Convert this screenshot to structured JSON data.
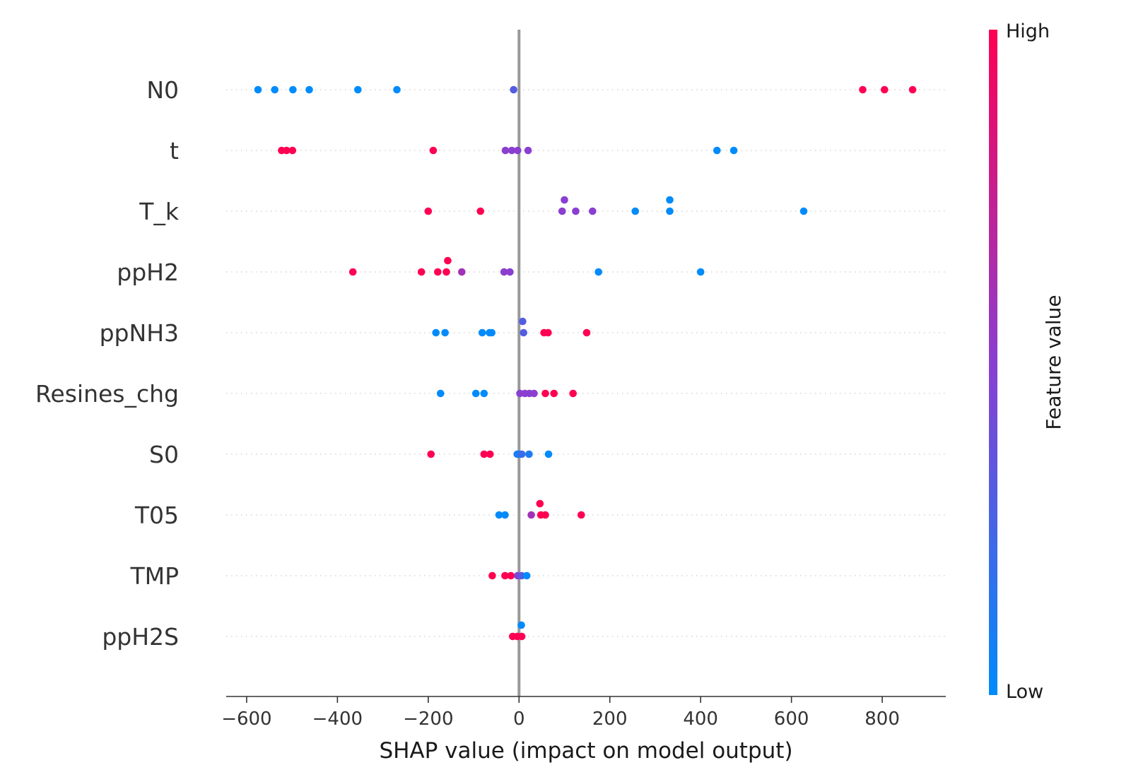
{
  "chart_data": {
    "type": "scatter",
    "subtype": "shap-beeswarm",
    "xlabel": "SHAP value (impact on model output)",
    "xlim": [
      -645,
      940
    ],
    "x_ticks": [
      -600,
      -400,
      -200,
      0,
      200,
      400,
      600,
      800
    ],
    "x_tick_labels": [
      "−600",
      "−400",
      "−200",
      "0",
      "200",
      "400",
      "600",
      "800"
    ],
    "grid": "dotted horizontal guide per feature row",
    "colorbar": {
      "title": "Feature value",
      "high_label": "High",
      "low_label": "Low",
      "colors": {
        "low": "#008bfb",
        "mid": "#8a3fd0",
        "high": "#ff0052"
      }
    },
    "features": [
      {
        "name": "N0",
        "points": [
          {
            "shap": -575,
            "value": 0.0,
            "lane": 0
          },
          {
            "shap": -538,
            "value": 0.0,
            "lane": 0
          },
          {
            "shap": -498,
            "value": 0.0,
            "lane": 0
          },
          {
            "shap": -462,
            "value": 0.0,
            "lane": 0
          },
          {
            "shap": -355,
            "value": 0.0,
            "lane": 0
          },
          {
            "shap": -269,
            "value": 0.0,
            "lane": 0
          },
          {
            "shap": -12,
            "value": 0.3,
            "lane": 0
          },
          {
            "shap": 757,
            "value": 1.0,
            "lane": 0
          },
          {
            "shap": 805,
            "value": 1.0,
            "lane": 0
          },
          {
            "shap": 867,
            "value": 1.0,
            "lane": 0
          }
        ]
      },
      {
        "name": "t",
        "points": [
          {
            "shap": -523,
            "value": 1.0,
            "lane": 0
          },
          {
            "shap": -512,
            "value": 1.0,
            "lane": 0
          },
          {
            "shap": -499,
            "value": 1.0,
            "lane": 0
          },
          {
            "shap": -189,
            "value": 1.0,
            "lane": 0
          },
          {
            "shap": -30,
            "value": 0.5,
            "lane": 0
          },
          {
            "shap": -16,
            "value": 0.5,
            "lane": 0
          },
          {
            "shap": -3,
            "value": 0.5,
            "lane": 0
          },
          {
            "shap": 20,
            "value": 0.5,
            "lane": 0
          },
          {
            "shap": 436,
            "value": 0.0,
            "lane": 0
          },
          {
            "shap": 473,
            "value": 0.0,
            "lane": 0
          }
        ]
      },
      {
        "name": "T_k",
        "points": [
          {
            "shap": -200,
            "value": 1.0,
            "lane": 0
          },
          {
            "shap": -85,
            "value": 1.0,
            "lane": 0
          },
          {
            "shap": 100,
            "value": 0.5,
            "lane": 1
          },
          {
            "shap": 95,
            "value": 0.5,
            "lane": 0
          },
          {
            "shap": 125,
            "value": 0.5,
            "lane": 0
          },
          {
            "shap": 162,
            "value": 0.5,
            "lane": 0
          },
          {
            "shap": 256,
            "value": 0.0,
            "lane": 0
          },
          {
            "shap": 332,
            "value": 0.0,
            "lane": 1
          },
          {
            "shap": 332,
            "value": 0.0,
            "lane": 0
          },
          {
            "shap": 627,
            "value": 0.0,
            "lane": 0
          }
        ]
      },
      {
        "name": "ppH2",
        "points": [
          {
            "shap": -366,
            "value": 1.0,
            "lane": 0
          },
          {
            "shap": -215,
            "value": 1.0,
            "lane": 0
          },
          {
            "shap": -179,
            "value": 1.0,
            "lane": 0
          },
          {
            "shap": -157,
            "value": 1.0,
            "lane": 1
          },
          {
            "shap": -160,
            "value": 1.0,
            "lane": 0
          },
          {
            "shap": -126,
            "value": 0.6,
            "lane": 0
          },
          {
            "shap": -33,
            "value": 0.5,
            "lane": 0
          },
          {
            "shap": -20,
            "value": 0.5,
            "lane": 0
          },
          {
            "shap": 175,
            "value": 0.0,
            "lane": 0
          },
          {
            "shap": 400,
            "value": 0.0,
            "lane": 0
          }
        ]
      },
      {
        "name": "ppNH3",
        "points": [
          {
            "shap": -183,
            "value": 0.0,
            "lane": 0
          },
          {
            "shap": -163,
            "value": 0.0,
            "lane": 0
          },
          {
            "shap": -81,
            "value": 0.0,
            "lane": 0
          },
          {
            "shap": -65,
            "value": 0.0,
            "lane": 0
          },
          {
            "shap": -60,
            "value": 0.0,
            "lane": 0
          },
          {
            "shap": 8,
            "value": 0.3,
            "lane": 1
          },
          {
            "shap": 10,
            "value": 0.3,
            "lane": 0
          },
          {
            "shap": 55,
            "value": 1.0,
            "lane": 0
          },
          {
            "shap": 64,
            "value": 1.0,
            "lane": 0
          },
          {
            "shap": 149,
            "value": 1.0,
            "lane": 0
          }
        ]
      },
      {
        "name": "Resines_chg",
        "points": [
          {
            "shap": -173,
            "value": 0.0,
            "lane": 0
          },
          {
            "shap": -95,
            "value": 0.0,
            "lane": 0
          },
          {
            "shap": -77,
            "value": 0.0,
            "lane": 0
          },
          {
            "shap": 2,
            "value": 0.5,
            "lane": 0
          },
          {
            "shap": 13,
            "value": 0.5,
            "lane": 0
          },
          {
            "shap": 23,
            "value": 0.5,
            "lane": 0
          },
          {
            "shap": 33,
            "value": 0.5,
            "lane": 0
          },
          {
            "shap": 58,
            "value": 1.0,
            "lane": 0
          },
          {
            "shap": 77,
            "value": 1.0,
            "lane": 0
          },
          {
            "shap": 119,
            "value": 1.0,
            "lane": 0
          }
        ]
      },
      {
        "name": "S0",
        "points": [
          {
            "shap": -194,
            "value": 1.0,
            "lane": 0
          },
          {
            "shap": -77,
            "value": 1.0,
            "lane": 0
          },
          {
            "shap": -64,
            "value": 1.0,
            "lane": 0
          },
          {
            "shap": -4,
            "value": 0.1,
            "lane": 0
          },
          {
            "shap": 1,
            "value": 0.1,
            "lane": 0
          },
          {
            "shap": 6,
            "value": 0.2,
            "lane": 0
          },
          {
            "shap": 22,
            "value": 0.1,
            "lane": 0
          },
          {
            "shap": 65,
            "value": 0.0,
            "lane": 0
          }
        ]
      },
      {
        "name": "T05",
        "points": [
          {
            "shap": -44,
            "value": 0.0,
            "lane": 0
          },
          {
            "shap": -31,
            "value": 0.0,
            "lane": 0
          },
          {
            "shap": 27,
            "value": 0.6,
            "lane": 0
          },
          {
            "shap": 46,
            "value": 1.0,
            "lane": 1
          },
          {
            "shap": 48,
            "value": 1.0,
            "lane": 0
          },
          {
            "shap": 58,
            "value": 1.0,
            "lane": 0
          },
          {
            "shap": 137,
            "value": 1.0,
            "lane": 0
          }
        ]
      },
      {
        "name": "TMP",
        "points": [
          {
            "shap": -59,
            "value": 1.0,
            "lane": 0
          },
          {
            "shap": -31,
            "value": 1.0,
            "lane": 0
          },
          {
            "shap": -18,
            "value": 1.0,
            "lane": 0
          },
          {
            "shap": -3,
            "value": 0.5,
            "lane": 0
          },
          {
            "shap": 6,
            "value": 0.3,
            "lane": 0
          },
          {
            "shap": 17,
            "value": 0.0,
            "lane": 0
          }
        ]
      },
      {
        "name": "ppH2S",
        "points": [
          {
            "shap": 5,
            "value": 0.0,
            "lane": 1
          },
          {
            "shap": -14,
            "value": 1.0,
            "lane": 0
          },
          {
            "shap": -4,
            "value": 1.0,
            "lane": 0
          },
          {
            "shap": 6,
            "value": 1.0,
            "lane": 0
          }
        ]
      }
    ]
  }
}
